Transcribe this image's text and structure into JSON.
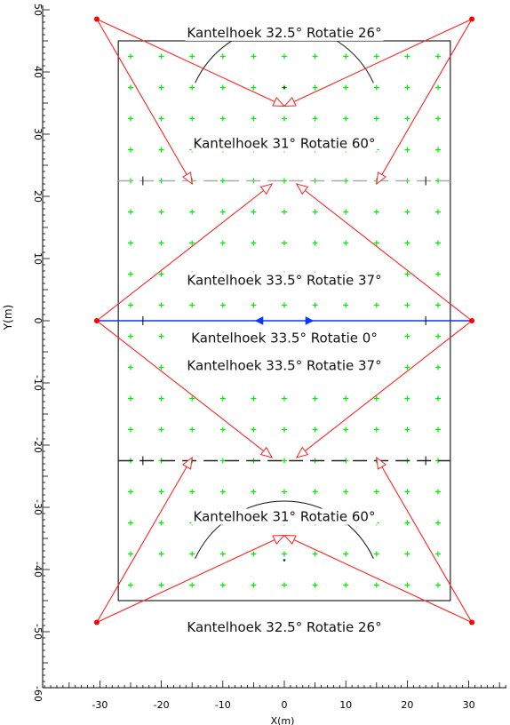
{
  "axes": {
    "x_label": "X(m)",
    "y_label": "Y(m)",
    "x_ticks": [
      -30,
      -20,
      -10,
      0,
      10,
      20,
      30
    ],
    "y_ticks": [
      50,
      40,
      30,
      20,
      10,
      0,
      -10,
      -20,
      -30,
      -40,
      -50,
      -60
    ]
  },
  "field": {
    "x_min": -27,
    "x_max": 27,
    "y_min": -45,
    "y_max": 45
  },
  "colors": {
    "aim_line": "#ff2222",
    "marker": "#00ee00",
    "center_line": "#1133ff",
    "mast": "#ff0000",
    "field_outline": "#222222",
    "arc": "#111111",
    "dashed_line": "#999999"
  },
  "annotations": [
    {
      "text": "Kantelhoek 32.5°  Rotatie 26°",
      "x": 0,
      "y": 46.3
    },
    {
      "text": "Kantelhoek 31°  Rotatie 60°",
      "x": 0,
      "y": 28.5
    },
    {
      "text": "Kantelhoek 33.5°  Rotatie 37°",
      "x": 0,
      "y": 6.5
    },
    {
      "text": "Kantelhoek 33.5°  Rotatie 0°",
      "x": 0,
      "y": -2.8
    },
    {
      "text": "Kantelhoek 33.5°  Rotatie 37°",
      "x": 0,
      "y": -7.2
    },
    {
      "text": "Kantelhoek 31°  Rotatie 60°",
      "x": 0,
      "y": -31.5
    },
    {
      "text": "Kantelhoek 32.5°  Rotatie 26°",
      "x": 0,
      "y": -49.3
    }
  ],
  "masts": [
    {
      "x": -30.5,
      "y": 48.5
    },
    {
      "x": 30.5,
      "y": 48.5
    },
    {
      "x": -30.5,
      "y": 0
    },
    {
      "x": 30.5,
      "y": 0
    },
    {
      "x": -30.5,
      "y": -48.5
    },
    {
      "x": 30.5,
      "y": -48.5
    }
  ],
  "aims": [
    {
      "from": 0,
      "to": [
        0,
        34.5
      ]
    },
    {
      "from": 0,
      "to": [
        -15,
        22
      ]
    },
    {
      "from": 1,
      "to": [
        0,
        34.5
      ]
    },
    {
      "from": 1,
      "to": [
        15,
        22
      ]
    },
    {
      "from": 2,
      "to": [
        -2,
        22
      ]
    },
    {
      "from": 2,
      "to": [
        -2,
        -22
      ]
    },
    {
      "from": 3,
      "to": [
        2,
        22
      ]
    },
    {
      "from": 3,
      "to": [
        2,
        -22
      ]
    },
    {
      "from": 4,
      "to": [
        0,
        -34.5
      ]
    },
    {
      "from": 4,
      "to": [
        -15,
        -22
      ]
    },
    {
      "from": 5,
      "to": [
        0,
        -34.5
      ]
    },
    {
      "from": 5,
      "to": [
        15,
        -22
      ]
    }
  ],
  "markers": {
    "xs": [
      -25,
      -20,
      -15,
      -10,
      -5,
      0,
      5,
      10,
      15,
      20,
      25
    ],
    "ys": [
      42.5,
      37.5,
      32.5,
      27.5,
      22.5,
      17.5,
      12.5,
      7.5,
      2.5,
      -2.5,
      -7.5,
      -12.5,
      -17.5,
      -22.5,
      -27.5,
      -32.5,
      -37.5,
      -42.5
    ]
  },
  "dashed_lines_y": [
    22.5,
    -22.5
  ],
  "arcs": [
    {
      "cx": 0,
      "cy": 45,
      "r": 16,
      "start_deg": 205,
      "end_deg": 335
    },
    {
      "cx": 0,
      "cy": -45,
      "r": 16,
      "start_deg": 25,
      "end_deg": 155
    }
  ],
  "center_arrows": [
    {
      "x": -3.5,
      "dir": -1
    },
    {
      "x": 3.5,
      "dir": 1
    }
  ],
  "center_dots": [
    {
      "x": 0,
      "y": 37.5
    },
    {
      "x": 0,
      "y": -38.5
    }
  ]
}
